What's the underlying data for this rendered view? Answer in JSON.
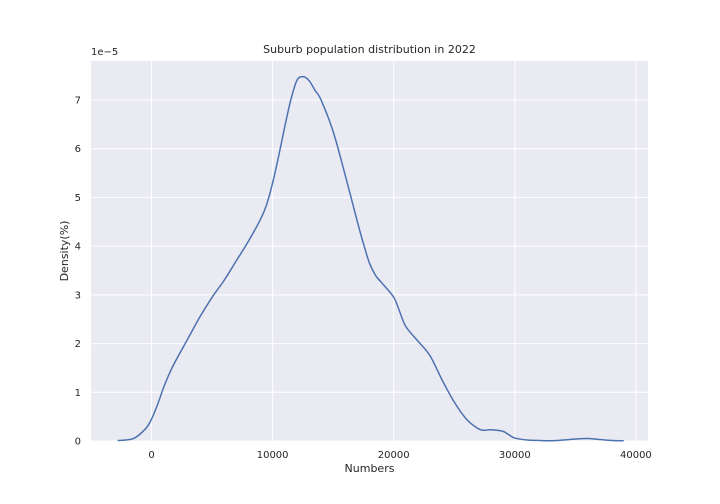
{
  "chart_data": {
    "type": "line",
    "title": "Suburb population distribution in 2022",
    "xlabel": "Numbers",
    "ylabel": "Density(%)",
    "y_offset_text": "1e−5",
    "xlim": [
      -5000,
      41000
    ],
    "ylim": [
      0,
      7.8
    ],
    "x_ticks": [
      0,
      10000,
      20000,
      30000,
      40000
    ],
    "x_tick_labels": [
      "0",
      "10000",
      "20000",
      "30000",
      "40000"
    ],
    "y_ticks": [
      0,
      1,
      2,
      3,
      4,
      5,
      6,
      7
    ],
    "y_tick_labels": [
      "0",
      "1",
      "2",
      "3",
      "4",
      "5",
      "6",
      "7"
    ],
    "grid": true,
    "colors": {
      "background": "#eaeaf2",
      "grid": "#ffffff",
      "line": "#4c72b0"
    },
    "series": [
      {
        "x": [
          -2800,
          -1500,
          -500,
          0,
          500,
          1000,
          1500,
          2000,
          3000,
          4000,
          5000,
          6000,
          7000,
          8000,
          9000,
          9500,
          10000,
          10500,
          11000,
          11500,
          12000,
          12500,
          13000,
          13500,
          14000,
          15000,
          16000,
          17000,
          17500,
          18000,
          18500,
          19000,
          20000,
          20500,
          21000,
          22000,
          23000,
          24000,
          25000,
          26000,
          27000,
          27500,
          28000,
          29000,
          29500,
          30000,
          31000,
          32000,
          33000,
          34000,
          35000,
          36000,
          37000,
          38000,
          39000
        ],
        "y": [
          0.01,
          0.05,
          0.25,
          0.45,
          0.75,
          1.1,
          1.4,
          1.65,
          2.1,
          2.55,
          2.95,
          3.3,
          3.7,
          4.1,
          4.55,
          4.85,
          5.3,
          5.85,
          6.45,
          7.0,
          7.4,
          7.48,
          7.4,
          7.2,
          7.0,
          6.35,
          5.45,
          4.5,
          4.05,
          3.65,
          3.4,
          3.25,
          2.95,
          2.65,
          2.35,
          2.05,
          1.75,
          1.25,
          0.8,
          0.45,
          0.25,
          0.22,
          0.23,
          0.2,
          0.13,
          0.06,
          0.02,
          0.01,
          0.005,
          0.02,
          0.04,
          0.05,
          0.03,
          0.01,
          0.005
        ]
      }
    ]
  }
}
